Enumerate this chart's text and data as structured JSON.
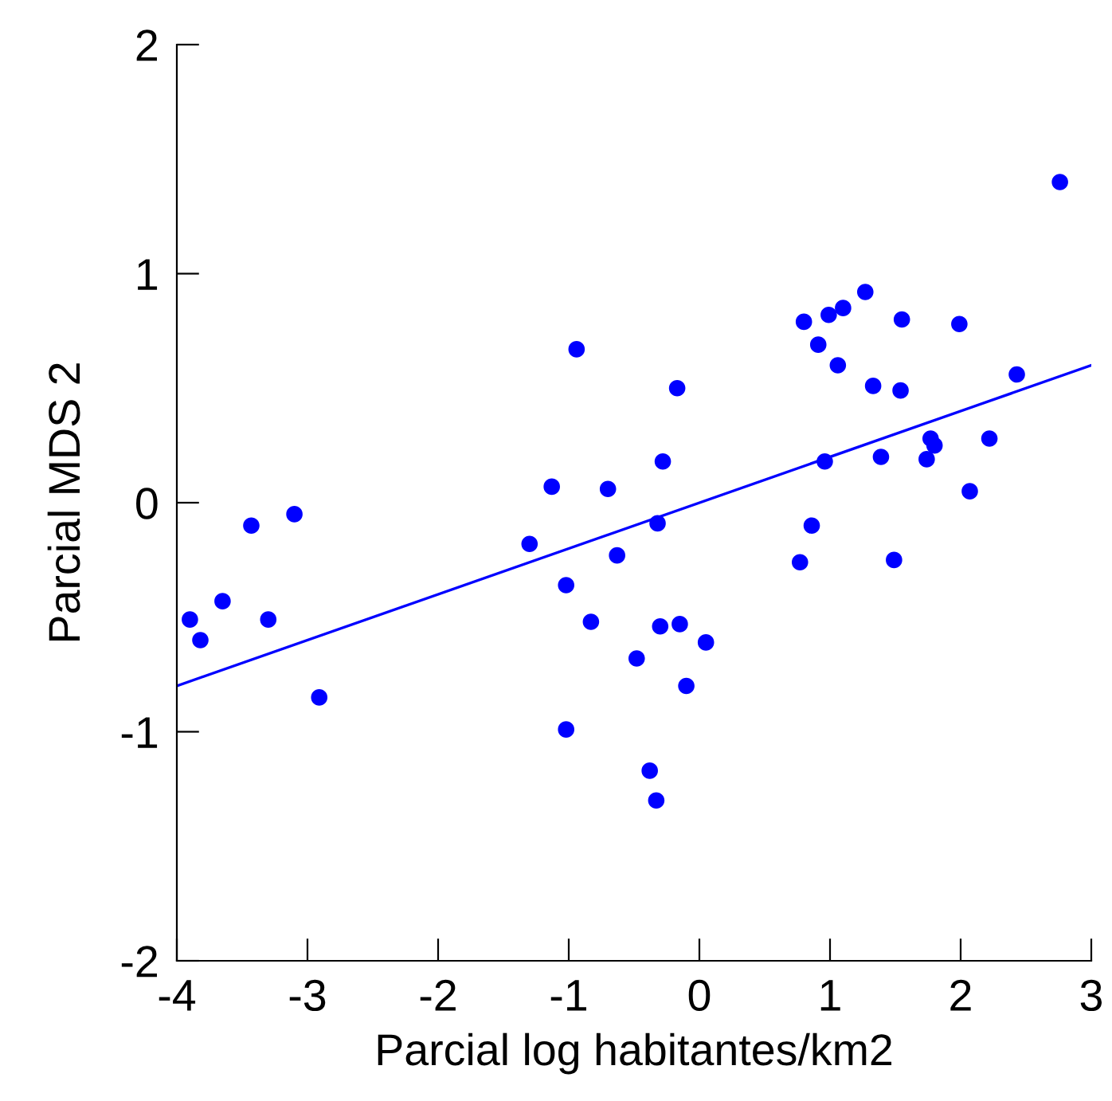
{
  "chart_data": {
    "type": "scatter",
    "xlabel": "Parcial log habitantes/km2",
    "ylabel": "Parcial MDS 2",
    "xlim": [
      -4,
      3
    ],
    "ylim": [
      -2,
      2
    ],
    "xticks": [
      -4,
      -3,
      -2,
      -1,
      0,
      1,
      2,
      3
    ],
    "yticks": [
      -2,
      -1,
      0,
      1,
      2
    ],
    "grid": false,
    "marker": "circle",
    "series": [
      {
        "color": "#0000ff",
        "x": [
          -3.9,
          -3.82,
          -3.65,
          -3.43,
          -3.3,
          -3.1,
          -2.91,
          -1.3,
          -1.13,
          -0.94,
          -1.02,
          -0.83,
          -0.7,
          -0.63,
          -0.48,
          -1.02,
          -0.38,
          -0.33,
          -0.32,
          -0.3,
          -0.28,
          -0.17,
          -0.15,
          -0.1,
          0.05,
          2.76,
          0.8,
          0.99,
          1.1,
          1.27,
          1.55,
          1.99,
          0.91,
          1.06,
          1.33,
          1.54,
          2.43,
          0.96,
          1.39,
          1.77,
          1.8,
          1.74,
          2.22,
          2.07,
          0.86,
          0.77,
          1.49
        ],
        "values": [
          -0.51,
          -0.6,
          -0.43,
          -0.1,
          -0.51,
          -0.05,
          -0.85,
          -0.18,
          0.07,
          0.67,
          -0.36,
          -0.52,
          0.06,
          -0.23,
          -0.68,
          -0.99,
          -1.17,
          -1.3,
          -0.09,
          -0.54,
          0.18,
          0.5,
          -0.53,
          -0.8,
          -0.61,
          1.4,
          0.79,
          0.82,
          0.85,
          0.92,
          0.8,
          0.78,
          0.69,
          0.6,
          0.51,
          0.49,
          0.56,
          0.18,
          0.2,
          0.28,
          0.25,
          0.19,
          0.28,
          0.05,
          -0.1,
          -0.26,
          -0.25
        ]
      },
      {
        "type": "line",
        "color": "#0000ff",
        "x": [
          -4,
          3
        ],
        "values": [
          -0.8,
          0.6
        ],
        "marker": "none"
      }
    ]
  }
}
